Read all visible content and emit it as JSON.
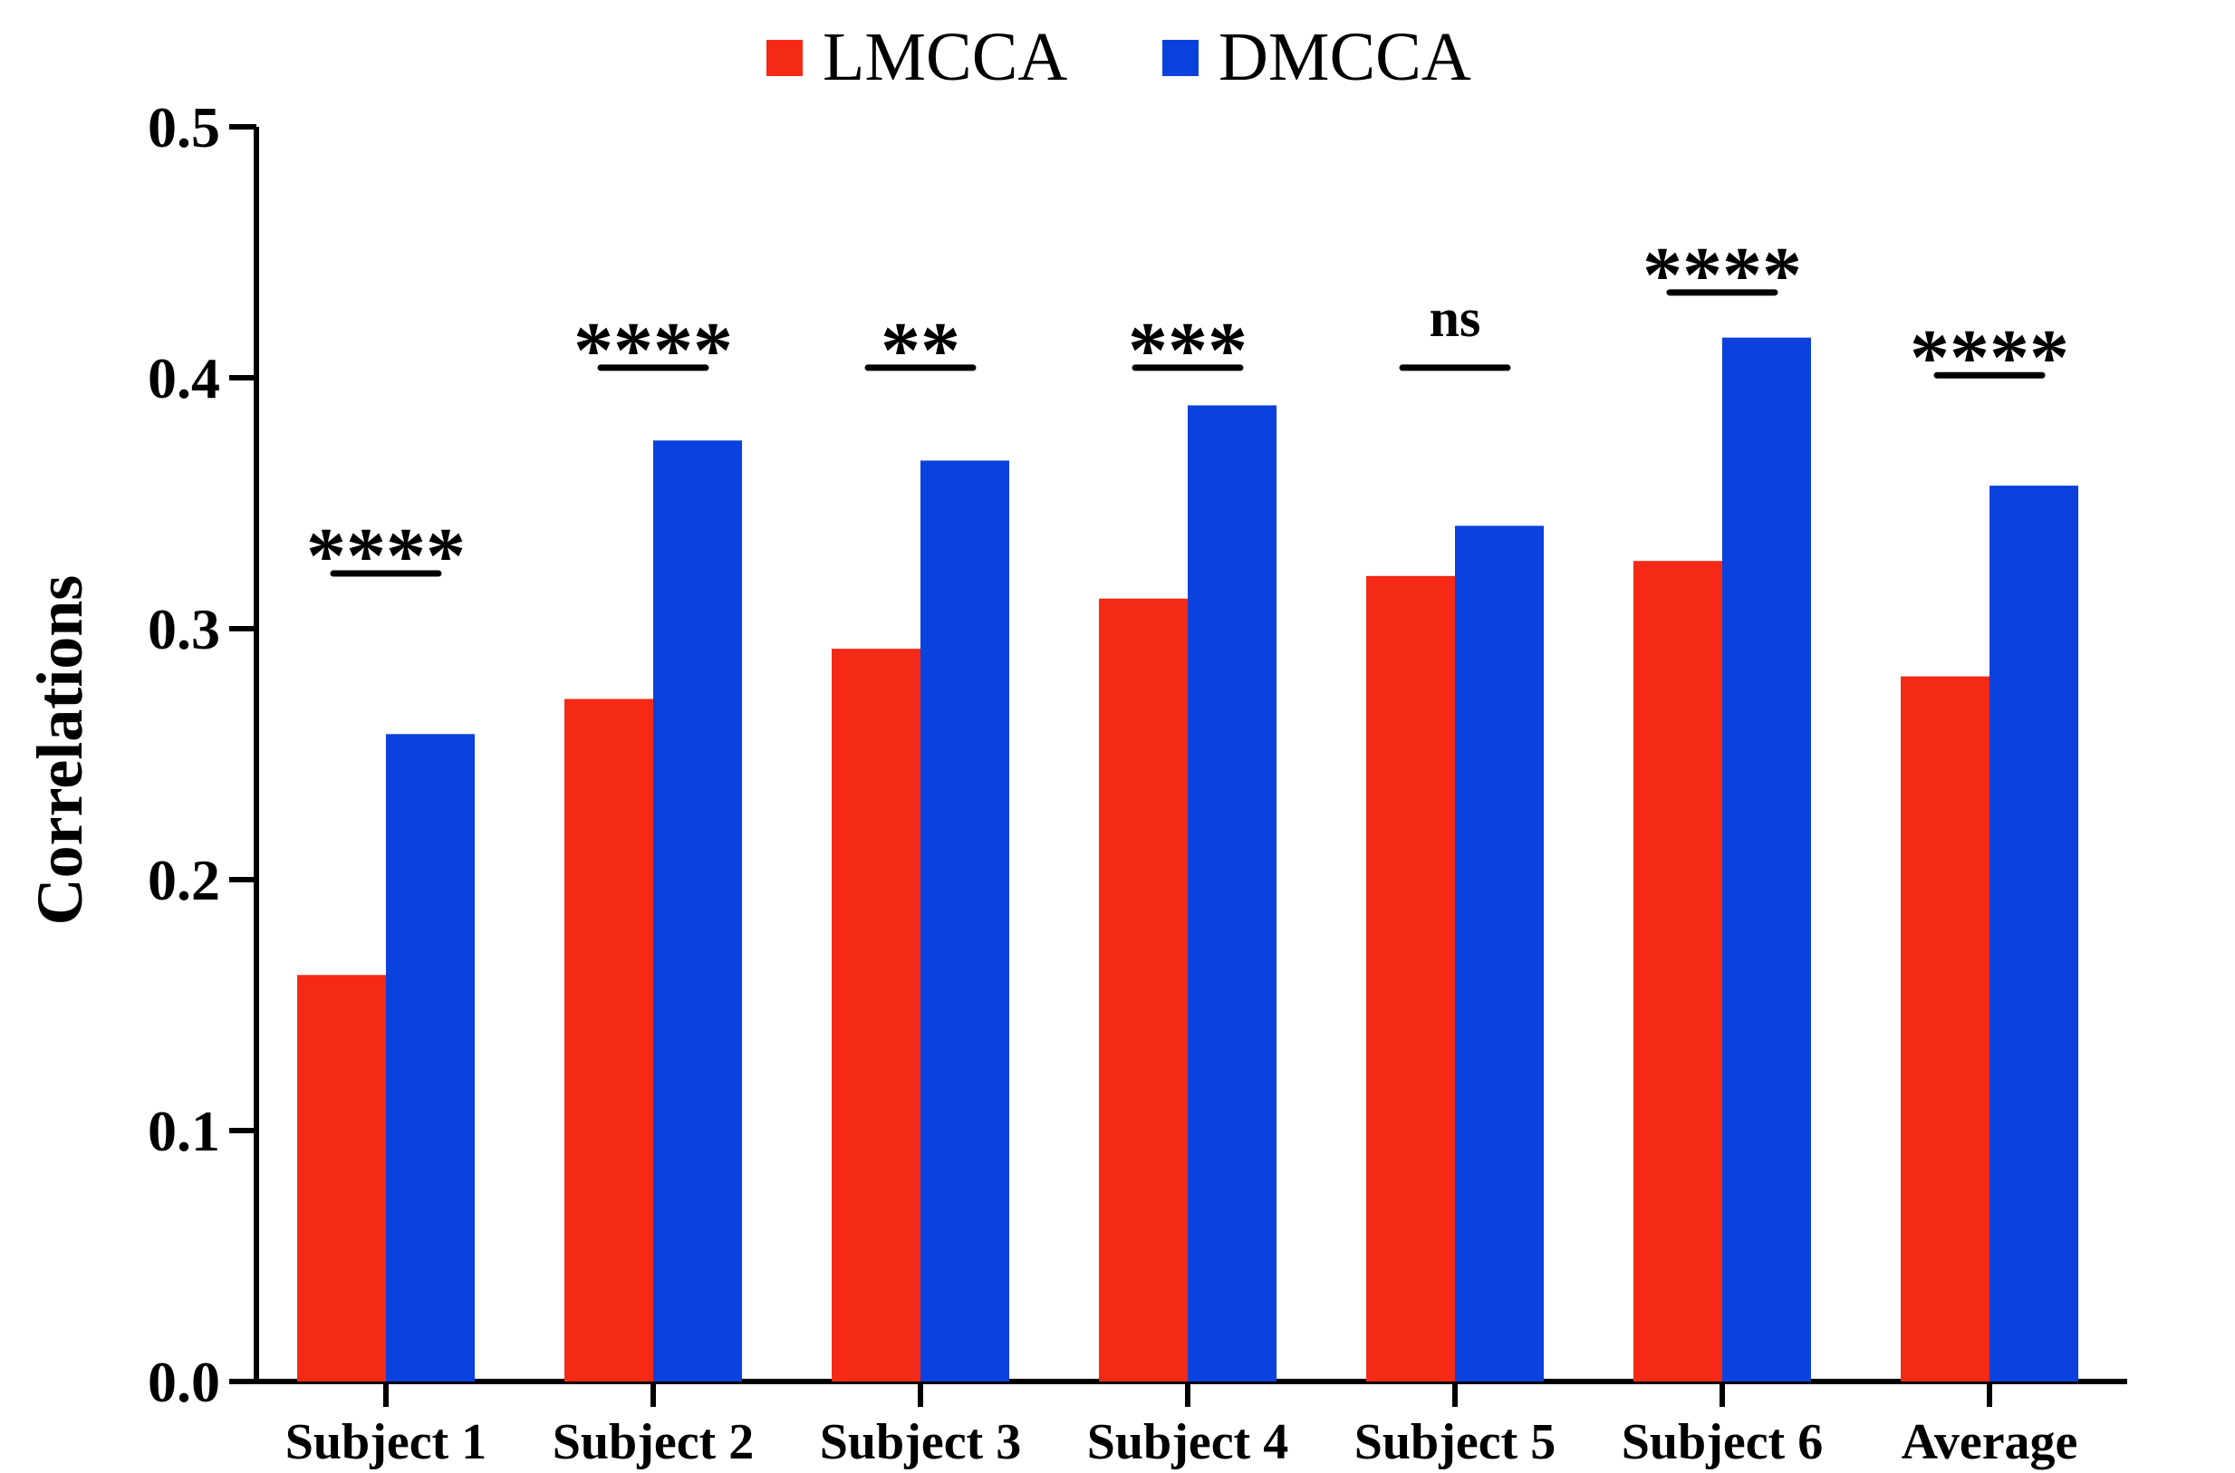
{
  "chart_data": {
    "type": "bar",
    "title": "",
    "xlabel": "",
    "ylabel": "Correlations",
    "ylim": [
      0,
      0.5
    ],
    "yticks": [
      "0.0",
      "0.1",
      "0.2",
      "0.3",
      "0.4",
      "0.5"
    ],
    "categories": [
      "Subject 1",
      "Subject 2",
      "Subject 3",
      "Subject 4",
      "Subject 5",
      "Subject 6",
      "Average"
    ],
    "series": [
      {
        "name": "LMCCA",
        "color": "#f42a16",
        "values": [
          0.162,
          0.272,
          0.292,
          0.312,
          0.321,
          0.327,
          0.281
        ]
      },
      {
        "name": "DMCCA",
        "color": "#0b41dc",
        "values": [
          0.258,
          0.375,
          0.367,
          0.389,
          0.341,
          0.416,
          0.357
        ]
      }
    ],
    "significance": [
      "****",
      "****",
      "**",
      "***",
      "ns",
      "****",
      "****"
    ],
    "significance_line_values": [
      0.322,
      0.404,
      0.404,
      0.404,
      0.404,
      0.434,
      0.401
    ],
    "legend_position": "top-center"
  }
}
